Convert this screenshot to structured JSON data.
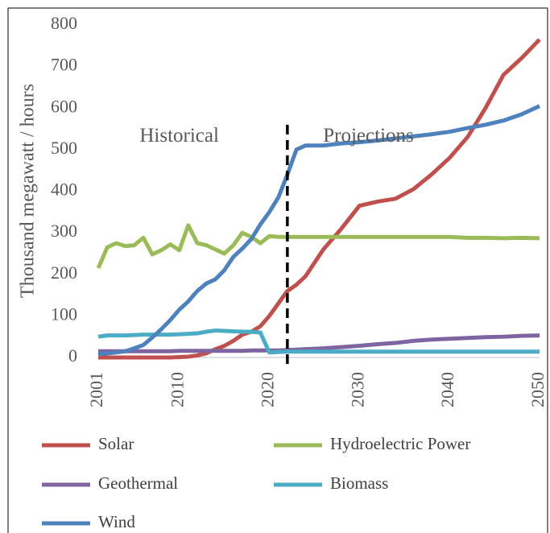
{
  "chart_data": {
    "type": "line",
    "y_label": "Thousand megawatt / hours",
    "annotations": [
      {
        "text": "Historical",
        "x": 2010,
        "y": 530
      },
      {
        "text": "Projections",
        "x": 2031,
        "y": 530
      }
    ],
    "divider_x": 2022,
    "x": [
      2001,
      2002,
      2003,
      2004,
      2005,
      2006,
      2007,
      2008,
      2009,
      2010,
      2011,
      2012,
      2013,
      2014,
      2015,
      2016,
      2017,
      2018,
      2019,
      2020,
      2021,
      2022,
      2023,
      2024,
      2026,
      2028,
      2030,
      2032,
      2034,
      2036,
      2038,
      2040,
      2042,
      2044,
      2046,
      2048,
      2050
    ],
    "series": [
      {
        "name": "Solar",
        "color": "#c0504d",
        "values": [
          0,
          0,
          0,
          0,
          0,
          0,
          0,
          0,
          0,
          1,
          2,
          5,
          10,
          20,
          28,
          40,
          55,
          62,
          75,
          100,
          130,
          160,
          175,
          195,
          260,
          310,
          365,
          375,
          382,
          405,
          440,
          480,
          530,
          600,
          680,
          720,
          765
        ]
      },
      {
        "name": "Hydroelectric Power",
        "color": "#9bbb59",
        "values": [
          215,
          265,
          275,
          268,
          270,
          288,
          248,
          258,
          272,
          258,
          318,
          275,
          270,
          260,
          250,
          270,
          300,
          290,
          275,
          292,
          290,
          290,
          290,
          290,
          290,
          290,
          290,
          290,
          290,
          290,
          290,
          290,
          288,
          288,
          287,
          288,
          287
        ]
      },
      {
        "name": "Geothermal",
        "color": "#8064a2",
        "values": [
          15,
          15,
          15,
          15,
          15,
          15,
          15,
          15,
          15,
          16,
          16,
          16,
          16,
          16,
          16,
          16,
          16,
          17,
          17,
          17,
          17,
          18,
          19,
          20,
          22,
          25,
          28,
          32,
          35,
          40,
          43,
          45,
          47,
          49,
          50,
          52,
          53
        ]
      },
      {
        "name": "Biomass",
        "color": "#4bacc6",
        "values": [
          50,
          53,
          53,
          53,
          54,
          55,
          55,
          55,
          55,
          56,
          57,
          58,
          62,
          65,
          64,
          63,
          62,
          62,
          60,
          12,
          13,
          14,
          14,
          14,
          14,
          14,
          14,
          14,
          14,
          14,
          14,
          14,
          14,
          14,
          14,
          14,
          14
        ]
      },
      {
        "name": "Wind",
        "color": "#4f81bd",
        "values": [
          8,
          10,
          12,
          15,
          22,
          30,
          48,
          68,
          90,
          115,
          135,
          160,
          178,
          188,
          210,
          242,
          262,
          285,
          320,
          350,
          385,
          440,
          500,
          510,
          510,
          515,
          518,
          522,
          527,
          532,
          537,
          543,
          552,
          560,
          570,
          585,
          605
        ]
      }
    ],
    "xlim": [
      2001,
      2050
    ],
    "ylim": [
      0,
      800
    ],
    "xticks": [
      2001,
      2010,
      2020,
      2030,
      2040,
      2050
    ],
    "yticks": [
      0,
      100,
      200,
      300,
      400,
      500,
      600,
      700,
      800
    ]
  }
}
